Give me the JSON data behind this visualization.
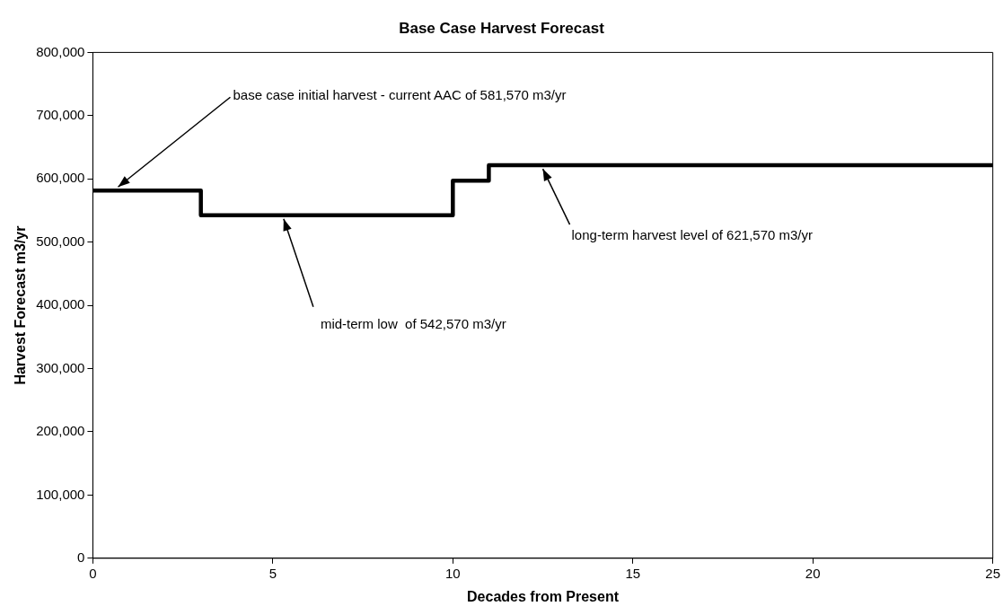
{
  "chart_data": {
    "type": "step",
    "title": "Base Case Harvest Forecast",
    "xlabel": "Decades from Present",
    "ylabel": "Harvest Forecast m3/yr",
    "x": [
      0,
      3,
      10,
      11,
      25
    ],
    "series": [
      {
        "color": "#000000",
        "values": [
          581570,
          542570,
          597000,
          621570,
          621570
        ]
      }
    ],
    "xlim": [
      0,
      25
    ],
    "xticks": [
      0,
      5,
      10,
      15,
      20,
      25
    ],
    "ylim": [
      0,
      800000
    ],
    "yticks": [
      {
        "value": 0,
        "label": "0"
      },
      {
        "value": 100000,
        "label": "100,000"
      },
      {
        "value": 200000,
        "label": "200,000"
      },
      {
        "value": 300000,
        "label": "300,000"
      },
      {
        "value": 400000,
        "label": "400,000"
      },
      {
        "value": 500000,
        "label": "500,000"
      },
      {
        "value": 600000,
        "label": "600,000"
      },
      {
        "value": 700000,
        "label": "700,000"
      },
      {
        "value": 800000,
        "label": "800,000"
      }
    ],
    "annotations": [
      {
        "text": "base case initial harvest - current AAC of 581,570 m3/yr",
        "x": 0.7,
        "y": 581570
      },
      {
        "text": "mid-term low  of 542,570 m3/yr",
        "x": 5.3,
        "y": 542570
      },
      {
        "text": "long-term harvest level of 621,570 m3/yr",
        "x": 12.5,
        "y": 621570
      }
    ],
    "grid": false,
    "legend": false,
    "marker": "none",
    "line_style": "solid"
  }
}
